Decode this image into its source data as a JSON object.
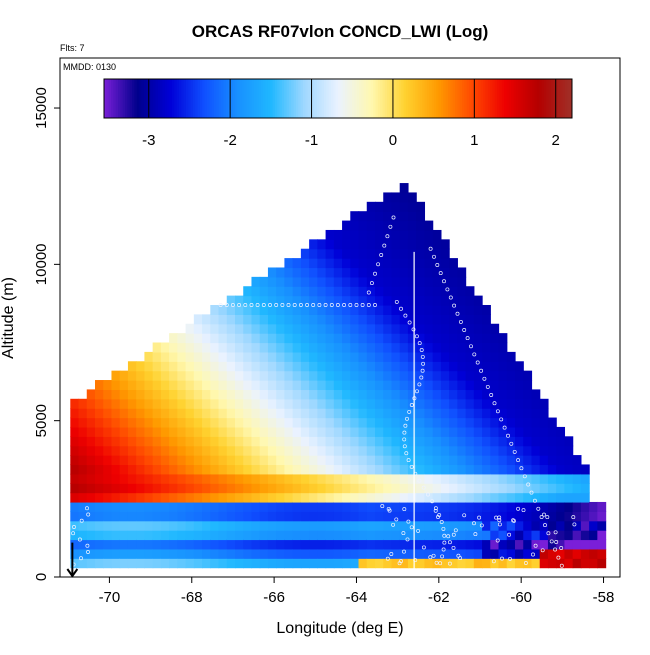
{
  "chart_data": {
    "type": "heatmap",
    "title": "ORCAS RF07vlon CONCD_LWI (Log)",
    "note_flts": "Flts: 7",
    "note_mmdd": "MMDD: 0130",
    "xlabel": "Longitude (deg E)",
    "ylabel": "Altitude (m)",
    "xlim": [
      -71.2,
      -57.6
    ],
    "ylim": [
      0,
      16600
    ],
    "x_ticks": [
      -70,
      -68,
      -66,
      -64,
      -62,
      -60,
      -58
    ],
    "y_ticks": [
      0,
      5000,
      10000,
      15000
    ],
    "colorbar": {
      "ticks": [
        -3,
        -2,
        -1,
        0,
        1,
        2
      ],
      "range": [
        -3.55,
        2.2
      ],
      "colors": [
        "#7a1fd8",
        "#00008c",
        "#0000d8",
        "#1050ff",
        "#1890ff",
        "#20b8ff",
        "#a0d8ff",
        "#eaf2ff",
        "#fff8b0",
        "#ffd230",
        "#ff9a00",
        "#ff4a00",
        "#ee0000",
        "#b40000",
        "#a03028"
      ]
    },
    "profile": {
      "x_range": [
        -70.95,
        -58.1
      ],
      "peak_lon": -62.9,
      "peak_alt": 12500,
      "left_edge_alt": 5500,
      "right_edge_alt": 3100,
      "right_edge_lon": -58.4
    },
    "transect_lon": -62.6,
    "marker": {
      "lon": -70.9,
      "alt_top": 1100
    }
  }
}
